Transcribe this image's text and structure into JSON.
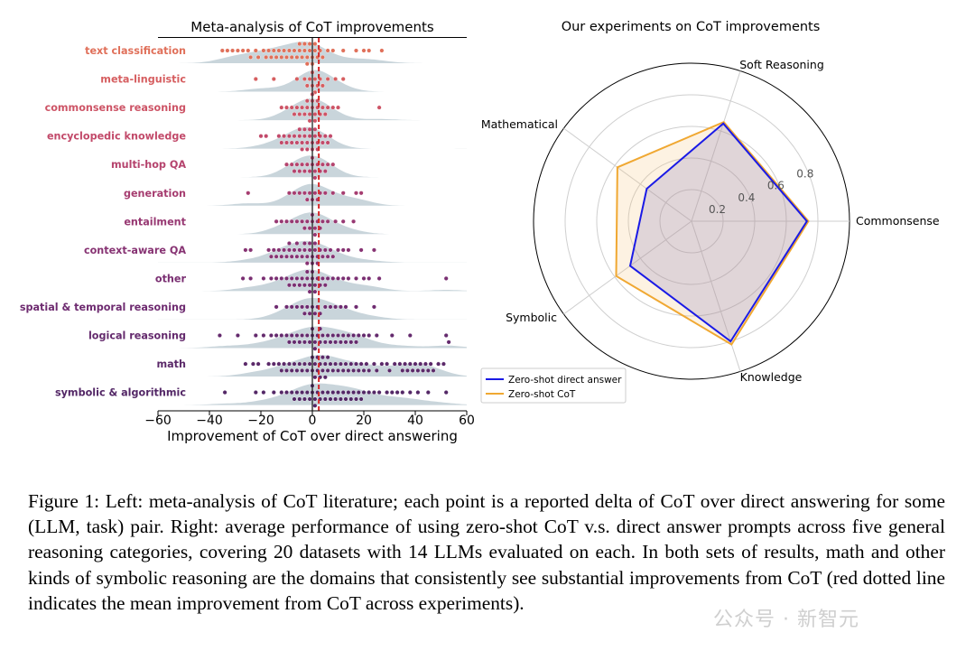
{
  "watermark": "公众号 · 新智元",
  "caption": "Figure 1: Left: meta-analysis of CoT literature; each point is a reported delta of CoT over direct answering for some (LLM, task) pair. Right: average performance of using zero-shot CoT v.s. direct answer prompts across five general reasoning categories, covering 20 datasets with 14 LLMs evaluated on each. In both sets of results, math and other kinds of symbolic reasoning are the domains that consistently see substantial improvements from CoT (red dotted line indicates the mean improvement from CoT across experiments).",
  "colors": {
    "kde_fill": "#b7c7cf",
    "mean_line": "#d62728",
    "direct_answer": "#1a1ae6",
    "zero_shot_cot": "#f0a832"
  },
  "chart_data": [
    {
      "type": "scatter",
      "subtype": "beeswarm",
      "title": "Meta-analysis of CoT improvements",
      "xlabel": "Improvement of CoT over direct answering",
      "ylabel": "",
      "xlim": [
        -60,
        60
      ],
      "xticks": [
        "−60",
        "−40",
        "−20",
        "0",
        "20",
        "40",
        "60"
      ],
      "mean_improvement": 2.5,
      "category_colors": [
        "#e0705a",
        "#d65e60",
        "#cd5466",
        "#c24a6a",
        "#b5436d",
        "#a63d70",
        "#973872",
        "#873373",
        "#7a2f72",
        "#6e2b70",
        "#642a6d",
        "#5b2969",
        "#532766"
      ],
      "series": [
        {
          "name": "text classification",
          "values": [
            -35,
            -33,
            -31,
            -29,
            -27,
            -25,
            -24,
            -22,
            -21,
            -19,
            -18,
            -17,
            -16,
            -15,
            -14,
            -13,
            -12,
            -11,
            -10,
            -9,
            -8,
            -7,
            -6,
            -5,
            -5,
            -4,
            -3,
            -3,
            -2,
            -2,
            -1,
            -1,
            0,
            0,
            1,
            1,
            2,
            3,
            4,
            6,
            8,
            12,
            17,
            20,
            22,
            27
          ]
        },
        {
          "name": "meta-linguistic",
          "values": [
            -22,
            -15,
            -6,
            -3,
            -2,
            -1,
            0,
            0,
            1,
            1,
            2,
            3,
            4,
            6,
            9,
            12
          ]
        },
        {
          "name": "commonsense reasoning",
          "values": [
            -12,
            -10,
            -8,
            -7,
            -6,
            -5,
            -4,
            -3,
            -2,
            -2,
            -1,
            -1,
            0,
            0,
            0,
            1,
            1,
            2,
            2,
            3,
            4,
            5,
            6,
            8,
            10,
            26
          ]
        },
        {
          "name": "encyclopedic knowledge",
          "values": [
            -20,
            -18,
            -13,
            -12,
            -11,
            -10,
            -9,
            -8,
            -7,
            -6,
            -5,
            -5,
            -4,
            -4,
            -3,
            -3,
            -2,
            -2,
            -1,
            -1,
            0,
            0,
            1,
            1,
            2,
            2,
            3,
            4,
            5,
            6,
            7
          ]
        },
        {
          "name": "multi-hop QA",
          "values": [
            -10,
            -8,
            -7,
            -6,
            -5,
            -4,
            -3,
            -2,
            -1,
            0,
            0,
            1,
            1,
            2,
            3,
            4,
            5,
            6,
            8
          ]
        },
        {
          "name": "generation",
          "values": [
            -25,
            -9,
            -7,
            -5,
            -3,
            -2,
            -1,
            0,
            1,
            2,
            3,
            5,
            8,
            12,
            17,
            19
          ]
        },
        {
          "name": "entailment",
          "values": [
            -14,
            -12,
            -10,
            -8,
            -6,
            -4,
            -3,
            -2,
            -1,
            0,
            0,
            1,
            1,
            2,
            3,
            4,
            6,
            9,
            12,
            16
          ]
        },
        {
          "name": "context-aware QA",
          "values": [
            -26,
            -24,
            -17,
            -16,
            -15,
            -14,
            -13,
            -12,
            -11,
            -10,
            -9,
            -9,
            -8,
            -7,
            -6,
            -6,
            -5,
            -4,
            -3,
            -3,
            -2,
            -2,
            -1,
            -1,
            0,
            0,
            1,
            1,
            2,
            2,
            3,
            4,
            5,
            6,
            7,
            8,
            10,
            12,
            14,
            19,
            24
          ]
        },
        {
          "name": "other",
          "values": [
            -27,
            -24,
            -19,
            -16,
            -14,
            -12,
            -10,
            -9,
            -8,
            -7,
            -6,
            -5,
            -4,
            -3,
            -2,
            -2,
            -1,
            -1,
            0,
            0,
            1,
            1,
            2,
            3,
            4,
            5,
            6,
            8,
            10,
            12,
            14,
            17,
            20,
            22,
            26,
            52
          ]
        },
        {
          "name": "spatial & temporal reasoning",
          "values": [
            -14,
            -10,
            -8,
            -6,
            -4,
            -3,
            -2,
            -1,
            0,
            1,
            2,
            3,
            5,
            7,
            9,
            11,
            13,
            17,
            24
          ]
        },
        {
          "name": "logical reasoning",
          "values": [
            -36,
            -29,
            -22,
            -19,
            -16,
            -14,
            -12,
            -10,
            -9,
            -8,
            -7,
            -6,
            -5,
            -4,
            -3,
            -2,
            -1,
            0,
            0,
            1,
            1,
            2,
            3,
            3,
            4,
            5,
            6,
            7,
            8,
            9,
            10,
            11,
            12,
            13,
            14,
            15,
            16,
            17,
            18,
            20,
            22,
            25,
            31,
            38,
            52,
            53
          ]
        },
        {
          "name": "math",
          "values": [
            -26,
            -23,
            -21,
            -17,
            -15,
            -13,
            -12,
            -11,
            -10,
            -9,
            -8,
            -7,
            -6,
            -5,
            -4,
            -3,
            -2,
            -1,
            0,
            0,
            1,
            1,
            2,
            2,
            3,
            3,
            4,
            4,
            5,
            5,
            6,
            6,
            7,
            8,
            9,
            10,
            11,
            12,
            13,
            14,
            15,
            16,
            17,
            18,
            19,
            20,
            21,
            22,
            24,
            25,
            27,
            29,
            30,
            32,
            34,
            35,
            36,
            37,
            38,
            39,
            40,
            41,
            42,
            43,
            44,
            45,
            46,
            47,
            49,
            51
          ]
        },
        {
          "name": "symbolic & algorithmic",
          "values": [
            -34,
            -22,
            -19,
            -15,
            -12,
            -10,
            -8,
            -7,
            -6,
            -5,
            -4,
            -3,
            -2,
            -1,
            0,
            0,
            1,
            1,
            2,
            3,
            4,
            5,
            6,
            7,
            8,
            9,
            10,
            11,
            12,
            13,
            14,
            15,
            16,
            17,
            18,
            19,
            20,
            22,
            24,
            26,
            29,
            31,
            33,
            35,
            38,
            41,
            45,
            52
          ]
        }
      ]
    },
    {
      "type": "radar",
      "title": "Our experiments on CoT improvements",
      "categories": [
        "Commonsense",
        "Soft Reasoning",
        "Mathematical",
        "Symbolic",
        "Knowledge"
      ],
      "rlim": [
        0,
        1
      ],
      "rticks": [
        "0.2",
        "0.4",
        "0.6",
        "0.8"
      ],
      "legend_position": "lower-left",
      "series": [
        {
          "name": "Zero-shot direct answer",
          "values": [
            0.73,
            0.65,
            0.35,
            0.48,
            0.8
          ]
        },
        {
          "name": "Zero-shot CoT",
          "values": [
            0.74,
            0.66,
            0.58,
            0.59,
            0.82
          ]
        }
      ]
    }
  ]
}
